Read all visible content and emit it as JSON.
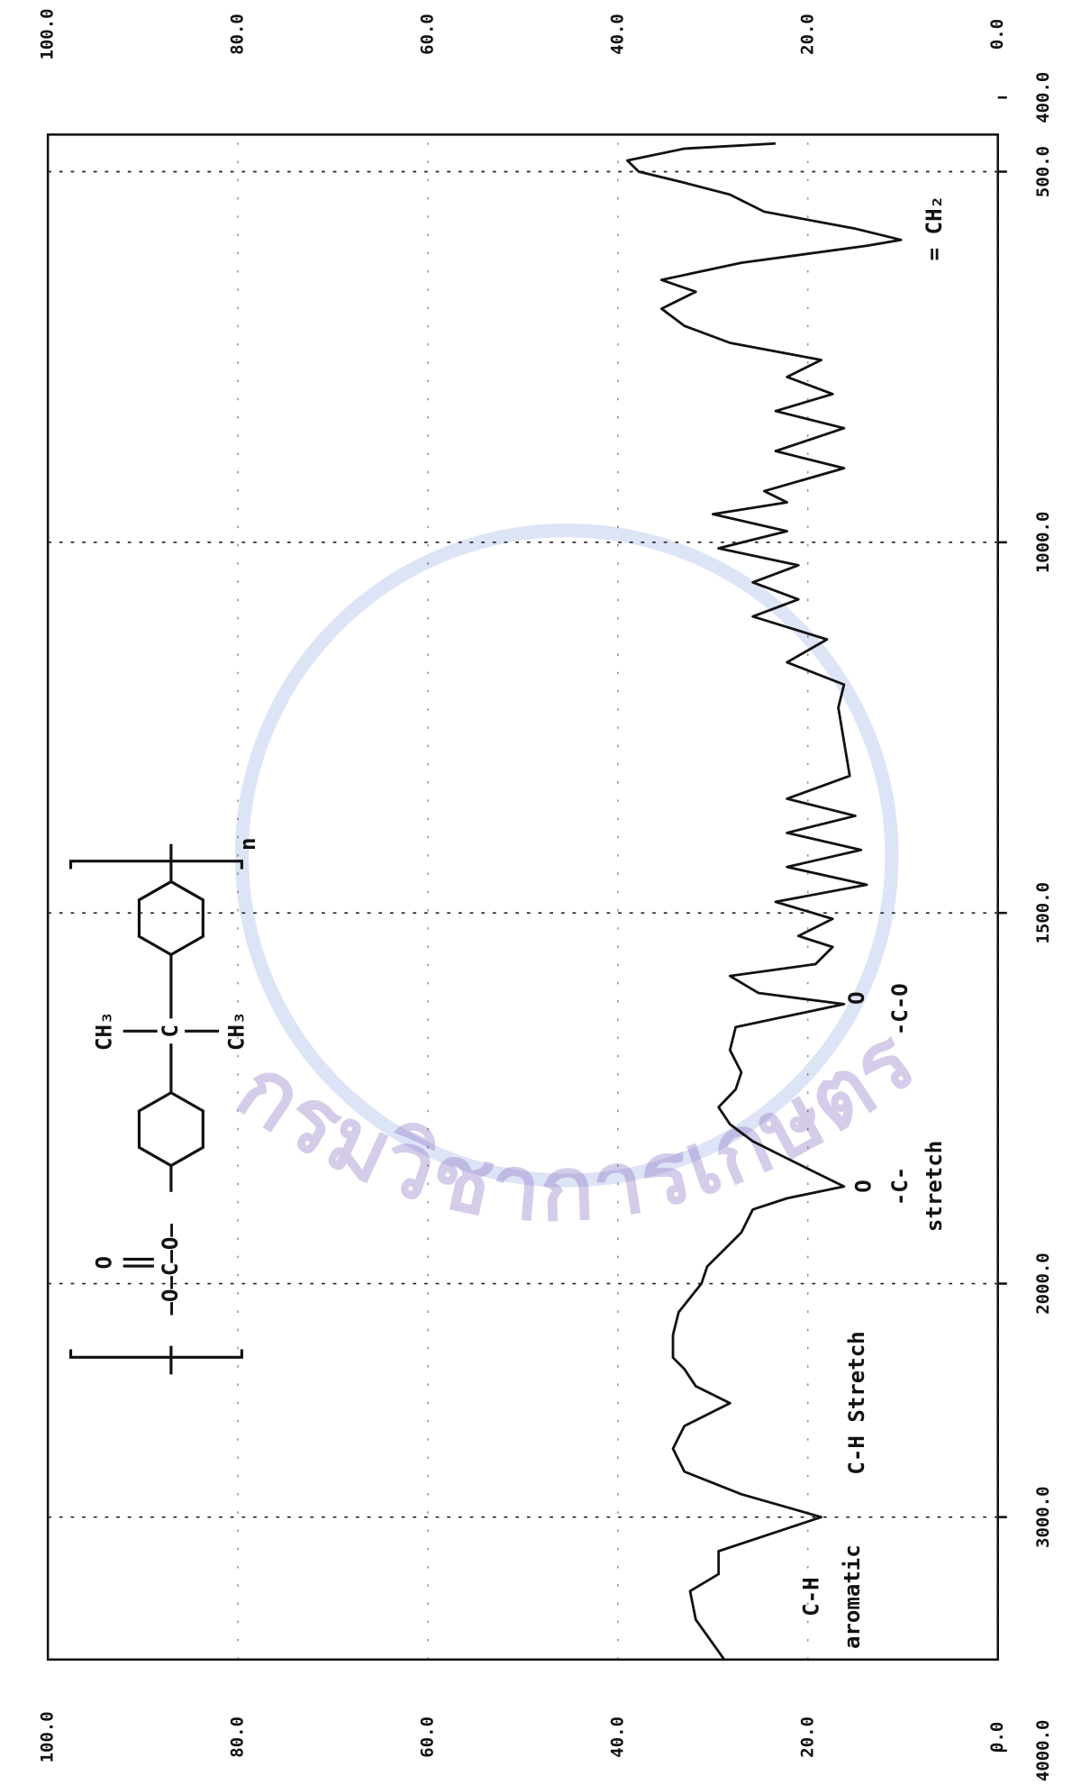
{
  "chart_data": {
    "type": "line",
    "color": "#111111",
    "x": [
      3610,
      3439,
      3317,
      3244,
      3146,
      3049,
      3000,
      2902,
      2805,
      2707,
      2610,
      2512,
      2439,
      2366,
      2317,
      2220,
      2122,
      2000,
      1977,
      1954,
      1931,
      1900,
      1885,
      1869,
      1854,
      1831,
      1808,
      1785,
      1762,
      1738,
      1715,
      1685,
      1654,
      1623,
      1608,
      1585,
      1569,
      1546,
      1531,
      1508,
      1485,
      1462,
      1438,
      1415,
      1392,
      1369,
      1346,
      1315,
      1269,
      1223,
      1192,
      1162,
      1131,
      1100,
      1077,
      1054,
      1031,
      1008,
      985,
      962,
      946,
      931,
      900,
      877,
      846,
      823,
      800,
      777,
      754,
      731,
      708,
      685,
      662,
      646,
      623,
      600,
      592,
      577,
      554,
      531,
      515,
      500,
      485,
      469,
      462
    ],
    "values": [
      28.8,
      31.8,
      32.4,
      29.4,
      29.4,
      22.2,
      18.6,
      27.0,
      33.0,
      34.2,
      33.0,
      28.2,
      31.8,
      33.0,
      34.2,
      34.2,
      33.6,
      31.2,
      30.6,
      28.8,
      27.0,
      25.8,
      22.2,
      16.2,
      18.6,
      22.2,
      25.8,
      28.2,
      29.4,
      27.6,
      27.0,
      28.2,
      27.6,
      16.2,
      25.2,
      28.2,
      19.2,
      17.4,
      21.0,
      17.4,
      23.4,
      13.8,
      22.2,
      14.4,
      22.2,
      15.0,
      22.2,
      15.6,
      16.2,
      16.8,
      16.2,
      22.2,
      18.0,
      25.8,
      21.0,
      25.8,
      21.0,
      29.4,
      22.2,
      30.0,
      22.2,
      24.6,
      16.2,
      23.4,
      16.2,
      23.4,
      17.4,
      22.2,
      18.6,
      28.2,
      33.0,
      35.4,
      31.8,
      35.4,
      27.0,
      13.8,
      10.2,
      15.0,
      24.6,
      28.2,
      33.0,
      37.8,
      39.0,
      33.0,
      23.4
    ],
    "xlim": [
      450,
      3610
    ],
    "xticks": [
      {
        "value": 400,
        "label": "400.0"
      },
      {
        "value": 500,
        "label": "500.0"
      },
      {
        "value": 1000,
        "label": "1000.0"
      },
      {
        "value": 1500,
        "label": "1500.0"
      },
      {
        "value": 2000,
        "label": "2000.0"
      },
      {
        "value": 3000,
        "label": "3000.0"
      },
      {
        "value": 4000,
        "label": "4000.0"
      }
    ],
    "ylim": [
      0,
      100
    ],
    "yticks": [
      {
        "value": 0,
        "label": "0.0"
      },
      {
        "value": 20,
        "label": "20.0"
      },
      {
        "value": 40,
        "label": "40.0"
      },
      {
        "value": 60,
        "label": "60.0"
      },
      {
        "value": 80,
        "label": "80.0"
      },
      {
        "value": 100,
        "label": "100.0"
      }
    ],
    "grid": true,
    "annotations": [
      "C-H",
      "aromatic",
      "C-H Stretch",
      "O",
      "-C-",
      "stretch",
      "O",
      "-C-O",
      "= CH₂"
    ],
    "structure": {
      "chain": "–O–C–O–",
      "carbonyl": "O",
      "center": "C",
      "methyl_top": "CH₃",
      "methyl_bottom": "CH₃",
      "repeat": "n"
    },
    "watermark": "กรมวิชาการเกษตร"
  }
}
